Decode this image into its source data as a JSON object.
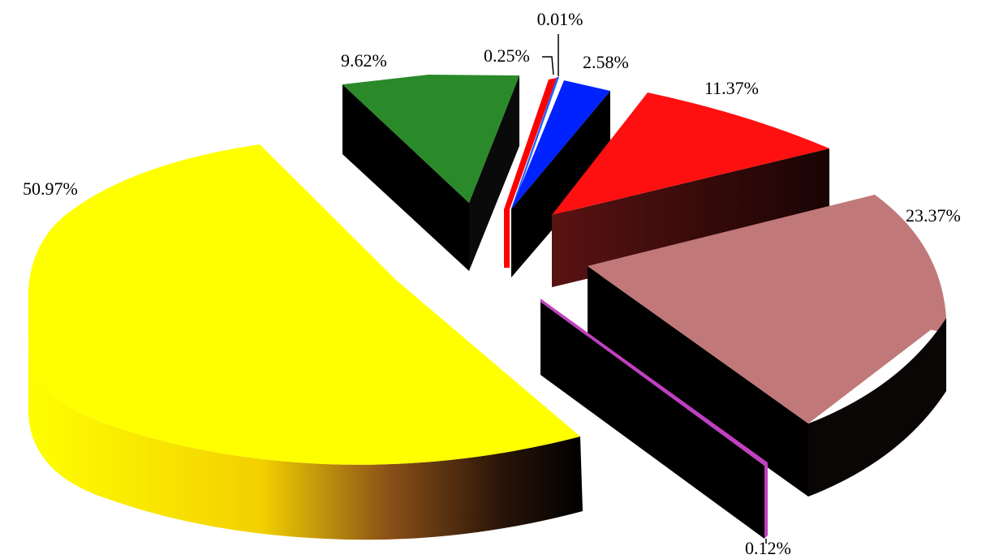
{
  "chart_data": {
    "type": "pie",
    "style": "3d-exploded",
    "title": "",
    "slices": [
      {
        "value": 50.97,
        "label": "50.97%",
        "color": "#ffff00"
      },
      {
        "value": 9.62,
        "label": "9.62%",
        "color": "#2a8a2a"
      },
      {
        "value": 0.25,
        "label": "0.25%",
        "color": "#ff0000"
      },
      {
        "value": 0.01,
        "label": "0.01%",
        "color": "#2060ff"
      },
      {
        "value": 2.58,
        "label": "2.58%",
        "color": "#0022ff"
      },
      {
        "value": 11.37,
        "label": "11.37%",
        "color": "#ff1010"
      },
      {
        "value": 23.37,
        "label": "23.37%",
        "color": "#c07878"
      },
      {
        "value": 0.12,
        "label": "0.12%",
        "color": "#c040c0"
      }
    ],
    "legend": "none"
  }
}
